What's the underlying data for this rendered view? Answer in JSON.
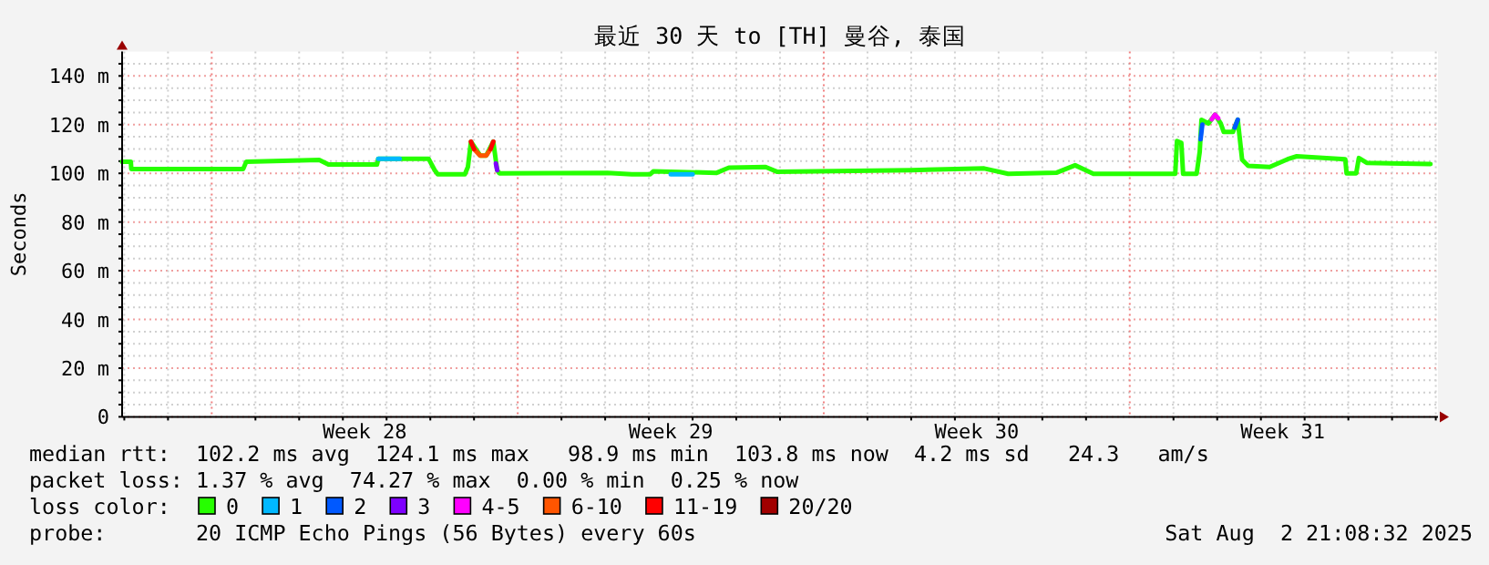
{
  "chart_data": {
    "type": "line",
    "title": "最近 30 天 to [TH] 曼谷, 泰国",
    "ylabel": "Seconds",
    "xlim": [
      "2025-07-03T22:48",
      "2025-08-03T01:12"
    ],
    "ylim": [
      0,
      150
    ],
    "xticks": [
      {
        "value": "2025-07-04T00:00",
        "label": null
      },
      {
        "value": "2025-07-05T00:00",
        "label": null
      },
      {
        "value": "2025-07-07T00:00",
        "label": null
      },
      {
        "value": "2025-07-08T00:00",
        "label": null
      },
      {
        "value": "2025-07-09T00:00",
        "label": null
      },
      {
        "value": "2025-07-10T00:00",
        "label": null
      },
      {
        "value": "2025-07-11T00:00",
        "label": null
      },
      {
        "value": "2025-07-12T00:00",
        "label": null
      },
      {
        "value": "2025-07-14T00:00",
        "label": null
      },
      {
        "value": "2025-07-15T00:00",
        "label": null
      },
      {
        "value": "2025-07-16T00:00",
        "label": null
      },
      {
        "value": "2025-07-17T00:00",
        "label": null
      },
      {
        "value": "2025-07-18T00:00",
        "label": null
      },
      {
        "value": "2025-07-19T00:00",
        "label": null
      },
      {
        "value": "2025-07-21T00:00",
        "label": null
      },
      {
        "value": "2025-07-22T00:00",
        "label": null
      },
      {
        "value": "2025-07-23T00:00",
        "label": null
      },
      {
        "value": "2025-07-24T00:00",
        "label": null
      },
      {
        "value": "2025-07-25T00:00",
        "label": null
      },
      {
        "value": "2025-07-26T00:00",
        "label": null
      },
      {
        "value": "2025-07-28T00:00",
        "label": null
      },
      {
        "value": "2025-07-29T00:00",
        "label": null
      },
      {
        "value": "2025-07-30T00:00",
        "label": null
      },
      {
        "value": "2025-07-31T00:00",
        "label": null
      },
      {
        "value": "2025-08-01T00:00",
        "label": null
      },
      {
        "value": "2025-08-02T00:00",
        "label": null
      },
      {
        "value": "2025-08-03T00:00",
        "label": null
      },
      {
        "value": "2025-07-09T12:00",
        "label": "Week 28"
      },
      {
        "value": "2025-07-16T12:00",
        "label": "Week 29"
      },
      {
        "value": "2025-07-23T12:00",
        "label": "Week 30"
      },
      {
        "value": "2025-07-30T12:00",
        "label": "Week 31"
      }
    ],
    "yticks": [
      0,
      {
        "value": 5,
        "label": null
      },
      {
        "value": 10,
        "label": null
      },
      {
        "value": 15,
        "label": null
      },
      {
        "value": 20,
        "label": "20 m"
      },
      {
        "value": 25,
        "label": null
      },
      {
        "value": 30,
        "label": null
      },
      {
        "value": 35,
        "label": null
      },
      {
        "value": 40,
        "label": "40 m"
      },
      {
        "value": 45,
        "label": null
      },
      {
        "value": 50,
        "label": null
      },
      {
        "value": 55,
        "label": null
      },
      {
        "value": 60,
        "label": "60 m"
      },
      {
        "value": 65,
        "label": null
      },
      {
        "value": 70,
        "label": null
      },
      {
        "value": 75,
        "label": null
      },
      {
        "value": 80,
        "label": "80 m"
      },
      {
        "value": 85,
        "label": null
      },
      {
        "value": 90,
        "label": null
      },
      {
        "value": 95,
        "label": null
      },
      {
        "value": 100,
        "label": "100 m"
      },
      {
        "value": 105,
        "label": null
      },
      {
        "value": 110,
        "label": null
      },
      {
        "value": 115,
        "label": null
      },
      {
        "value": 120,
        "label": "120 m"
      },
      {
        "value": 125,
        "label": null
      },
      {
        "value": 130,
        "label": null
      },
      {
        "value": 135,
        "label": null
      },
      {
        "value": 140,
        "label": "140 m"
      },
      {
        "value": 145,
        "label": null
      }
    ],
    "grid": true,
    "ref_lines": [
      {
        "axis": "x",
        "value": "2025-07-06T00:00",
        "color": "#f08080",
        "line_style": "dotted"
      },
      {
        "axis": "x",
        "value": "2025-07-13T00:00",
        "color": "#f08080",
        "line_style": "dotted"
      },
      {
        "axis": "x",
        "value": "2025-07-20T00:00",
        "color": "#f08080",
        "line_style": "dotted"
      },
      {
        "axis": "x",
        "value": "2025-07-27T00:00",
        "color": "#f08080",
        "line_style": "dotted"
      }
    ],
    "legend": "bottom",
    "legend_title": "loss color:",
    "series": [
      {
        "name": "0",
        "color": "#26ff00",
        "x": [
          "2025-07-03T22:48",
          "2025-07-04T03:36",
          "2025-07-04T03:50",
          "2025-07-06T17:17",
          "2025-07-06T18:58",
          "2025-07-08T11:02",
          "2025-07-08T16:05",
          "2025-07-09T18:43",
          "2025-07-09T19:26",
          "2025-07-10T23:02",
          "2025-07-11T02:24",
          "2025-07-11T04:05",
          "2025-07-11T18:58",
          "2025-07-11T20:38",
          "2025-07-11T22:19",
          "2025-07-12T03:22",
          "2025-07-12T06:43",
          "2025-07-12T10:34",
          "2025-07-12T12:43",
          "2025-07-12T13:55",
          "2025-07-15T01:12",
          "2025-07-15T14:38",
          "2025-07-16T00:43",
          "2025-07-16T02:24",
          "2025-07-17T13:12",
          "2025-07-17T19:55",
          "2025-07-18T16:05",
          "2025-07-18T22:34",
          "2025-07-22T00:00",
          "2025-07-23T16:05",
          "2025-07-24T05:17",
          "2025-07-25T07:55",
          "2025-07-25T18:00",
          "2025-07-26T04:05",
          "2025-07-28T00:58",
          "2025-07-28T01:55",
          "2025-07-28T04:19",
          "2025-07-28T05:17",
          "2025-07-28T12:43",
          "2025-07-28T14:24",
          "2025-07-28T15:22",
          "2025-07-28T19:12",
          "2025-07-28T22:48",
          "2025-07-29T01:55",
          "2025-07-29T03:36",
          "2025-07-29T08:38",
          "2025-07-29T11:17",
          "2025-07-29T13:41",
          "2025-07-29T17:02",
          "2025-07-30T04:48",
          "2025-07-30T14:38",
          "2025-07-30T19:41",
          "2025-07-31T22:19",
          "2025-07-31T23:02",
          "2025-08-01T04:19",
          "2025-08-01T05:46",
          "2025-08-01T10:05",
          "2025-08-02T21:07"
        ],
        "values": [
          104.8,
          104.8,
          101.8,
          101.8,
          104.8,
          105.5,
          103.6,
          103.6,
          106,
          106,
          101.3,
          99.6,
          99.6,
          102.6,
          113,
          107.3,
          107.3,
          113,
          101.3,
          100,
          100.2,
          99.6,
          99.6,
          100.8,
          100.2,
          102.3,
          102.6,
          100.6,
          101.3,
          102,
          99.8,
          100.3,
          103.3,
          99.8,
          99.8,
          113.3,
          112.5,
          99.8,
          99.8,
          108.8,
          122,
          120.5,
          124.1,
          120.5,
          117,
          117,
          122,
          105.6,
          103.1,
          102.6,
          105.8,
          107,
          105.8,
          100,
          100,
          106.3,
          104.3,
          103.8
        ]
      },
      {
        "name": "1",
        "color": "#00b8ff",
        "x": [
          "2025-07-09T19:26",
          "2025-07-10T07:12",
          "2025-07-14T00:00",
          "2025-07-16T12:00",
          "2025-07-17T00:00"
        ],
        "values": [
          106,
          106,
          null,
          99.6,
          99.6
        ]
      },
      {
        "name": "2",
        "color": "#0059ff",
        "x": [
          "2025-07-28T14:53",
          "2025-07-28T15:50",
          "2025-07-28T16:48",
          "2025-07-29T09:36",
          "2025-07-29T11:17"
        ],
        "values": [
          114,
          120,
          null,
          118.8,
          122
        ]
      },
      {
        "name": "3",
        "color": "#7e00ff",
        "x": [
          "2025-07-12T12:00",
          "2025-07-12T12:43"
        ],
        "values": [
          104,
          101.3
        ]
      },
      {
        "name": "4-5",
        "color": "#ff00ff",
        "x": [
          "2025-07-28T21:00",
          "2025-07-28T22:48",
          "2025-07-29T00:36"
        ],
        "values": [
          122.2,
          124.1,
          122.6
        ]
      },
      {
        "name": "6-10",
        "color": "#ff5500",
        "x": [
          "2025-07-12T00:00",
          "2025-07-12T03:22",
          "2025-07-12T06:43",
          "2025-07-12T09:07"
        ],
        "values": [
          110,
          107.3,
          107.3,
          110
        ]
      },
      {
        "name": "11-19",
        "color": "#ff0000",
        "x": [
          "2025-07-11T22:19",
          "2025-07-12T00:00",
          "2025-07-12T02:24",
          "2025-07-12T09:07",
          "2025-07-12T10:34"
        ],
        "values": [
          113,
          110,
          null,
          110,
          113
        ]
      },
      {
        "name": "20/20",
        "color": "#a10000"
      }
    ],
    "annotations": [
      "median rtt:  102.2 ms avg  124.1 ms max   98.9 ms min  103.8 ms now  4.2 ms sd   24.3   am/s",
      "packet loss: 1.37 % avg  74.27 % max  0.00 % min  0.25 % now",
      "probe:       20 ICMP Echo Pings (56 Bytes) every 60s",
      "Sat Aug  2 21:08:32 2025"
    ]
  }
}
